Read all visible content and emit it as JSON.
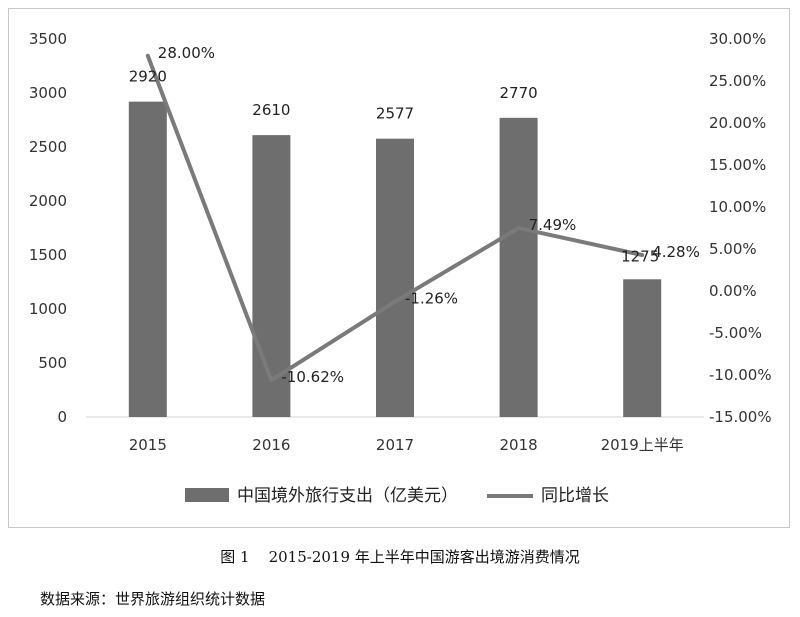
{
  "chart_data": {
    "type": "bar+line",
    "categories": [
      "2015",
      "2016",
      "2017",
      "2018",
      "2019上半年"
    ],
    "series": [
      {
        "name": "中国境外旅行支出（亿美元）",
        "type": "bar",
        "axis": "left",
        "values": [
          2920,
          2610,
          2577,
          2770,
          1275
        ],
        "labels": [
          "2920",
          "2610",
          "2577",
          "2770",
          "1275"
        ]
      },
      {
        "name": "同比增长",
        "type": "line",
        "axis": "right",
        "values": [
          28.0,
          -10.62,
          -1.26,
          7.49,
          4.28
        ],
        "labels": [
          "28.00%",
          "-10.62%",
          "-1.26%",
          "7.49%",
          "4.28%"
        ]
      }
    ],
    "y_left": {
      "min": 0,
      "max": 3500,
      "step": 500,
      "ticks": [
        "0",
        "500",
        "1000",
        "1500",
        "2000",
        "2500",
        "3000",
        "3500"
      ]
    },
    "y_right": {
      "min": -15,
      "max": 30,
      "step": 5,
      "ticks": [
        "-15.00%",
        "-10.00%",
        "-5.00%",
        "0.00%",
        "5.00%",
        "10.00%",
        "15.00%",
        "20.00%",
        "25.00%",
        "30.00%"
      ]
    },
    "legend_position": "bottom",
    "grid": false,
    "colors": {
      "bar": "#6e6e6e",
      "line": "#7a7a7a"
    }
  },
  "caption": "图 1    2015-2019 年上半年中国游客出境游消费情况",
  "source": "数据来源：世界旅游组织统计数据"
}
